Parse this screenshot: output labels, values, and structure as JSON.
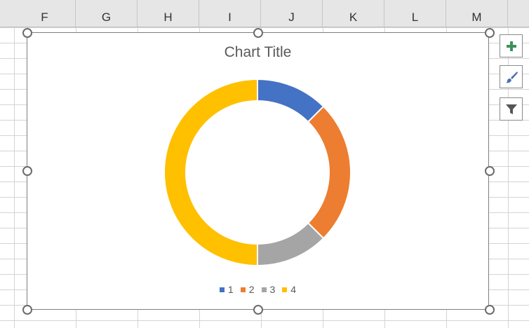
{
  "columns": [
    "F",
    "G",
    "H",
    "I",
    "J",
    "K",
    "L",
    "M"
  ],
  "chart_data": {
    "type": "pie",
    "variant": "doughnut",
    "title": "Chart Title",
    "categories": [
      "1",
      "2",
      "3",
      "4"
    ],
    "values": [
      1,
      2,
      1,
      4
    ],
    "colors": [
      "#4472C4",
      "#ED7D31",
      "#A5A5A5",
      "#FFC000"
    ],
    "legend": "bottom"
  },
  "side_buttons": [
    {
      "icon": "plus-icon"
    },
    {
      "icon": "brush-icon"
    },
    {
      "icon": "filter-icon"
    }
  ]
}
